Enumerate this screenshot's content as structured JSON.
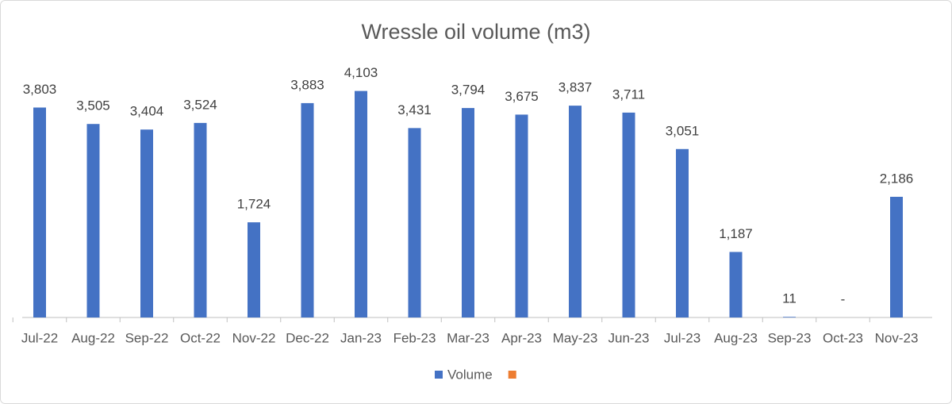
{
  "chart_data": {
    "type": "bar",
    "title": "Wressle oil volume (m3)",
    "categories": [
      "Jul-22",
      "Aug-22",
      "Sep-22",
      "Oct-22",
      "Nov-22",
      "Dec-22",
      "Jan-23",
      "Feb-23",
      "Mar-23",
      "Apr-23",
      "May-23",
      "Jun-23",
      "Jul-23",
      "Aug-23",
      "Sep-23",
      "Oct-23",
      "Nov-23"
    ],
    "series": [
      {
        "name": "Volume",
        "color": "#4472c4",
        "values": [
          3803,
          3505,
          3404,
          3524,
          1724,
          3883,
          4103,
          3431,
          3794,
          3675,
          3837,
          3711,
          3051,
          1187,
          11,
          0,
          2186
        ],
        "value_labels": [
          "3,803",
          "3,505",
          "3,404",
          "3,524",
          "1,724",
          "3,883",
          "4,103",
          "3,431",
          "3,794",
          "3,675",
          "3,837",
          "3,711",
          "3,051",
          "1,187",
          "11",
          "-",
          "2,186"
        ]
      },
      {
        "color": "#ed7d31"
      }
    ],
    "ylim": [
      0,
      4500
    ],
    "legend": "bottom"
  }
}
